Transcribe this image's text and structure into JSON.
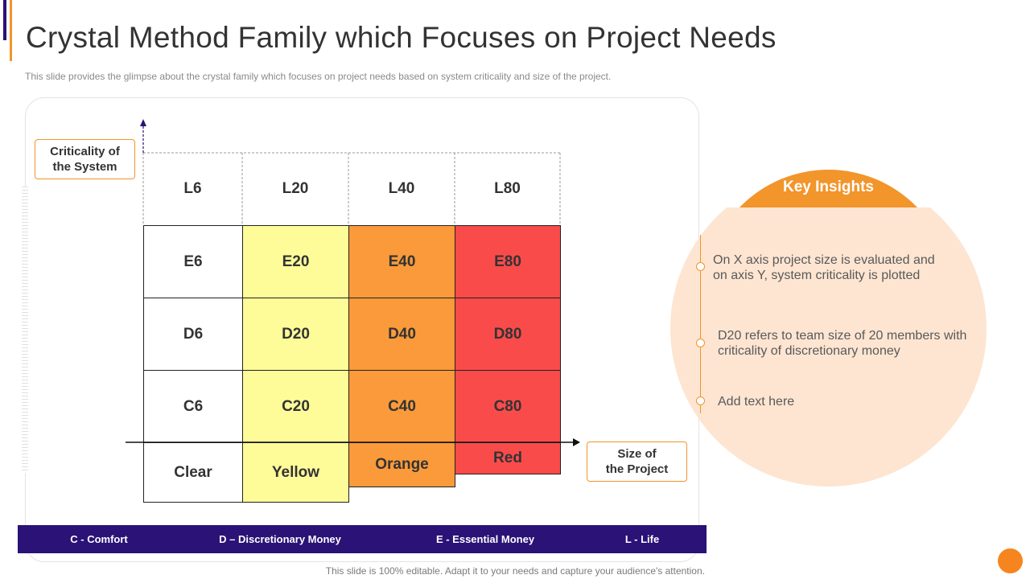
{
  "header": {
    "title": "Crystal Method Family which Focuses on Project Needs",
    "subtitle": "This slide provides  the glimpse about the crystal family which focuses on project needs based on system criticality and size of the project."
  },
  "axes": {
    "y_label": "Criticality of\nthe System",
    "x_label": "Size of\nthe Project"
  },
  "matrix": {
    "columns": [
      {
        "level": "L6",
        "rows": [
          "E6",
          "D6",
          "C6"
        ],
        "color_label": "Clear",
        "fill": "#ffffff"
      },
      {
        "level": "L20",
        "rows": [
          "E20",
          "D20",
          "C20"
        ],
        "color_label": "Yellow",
        "fill": "#fefc99"
      },
      {
        "level": "L40",
        "rows": [
          "E40",
          "D40",
          "C40"
        ],
        "color_label": "Orange",
        "fill": "#fa9a3a"
      },
      {
        "level": "L80",
        "rows": [
          "E80",
          "D80",
          "C80"
        ],
        "color_label": "Red",
        "fill": "#fa4b4b"
      }
    ]
  },
  "legend": {
    "items": [
      "C - Comfort",
      "D – Discretionary Money",
      "E - Essential Money",
      "L - Life"
    ]
  },
  "insights": {
    "heading": "Key Insights",
    "points": [
      "On X axis project size is evaluated and on axis Y, system criticality is plotted",
      "D20 refers to team size of 20 members with criticality of discretionary money",
      "Add text here"
    ]
  },
  "footer": {
    "note": "This slide is 100% editable. Adapt it to your needs and capture your audience's attention."
  },
  "colors": {
    "accent_orange": "#f2952b",
    "navy": "#2a1276",
    "insight_bg": "#fde5d1"
  }
}
